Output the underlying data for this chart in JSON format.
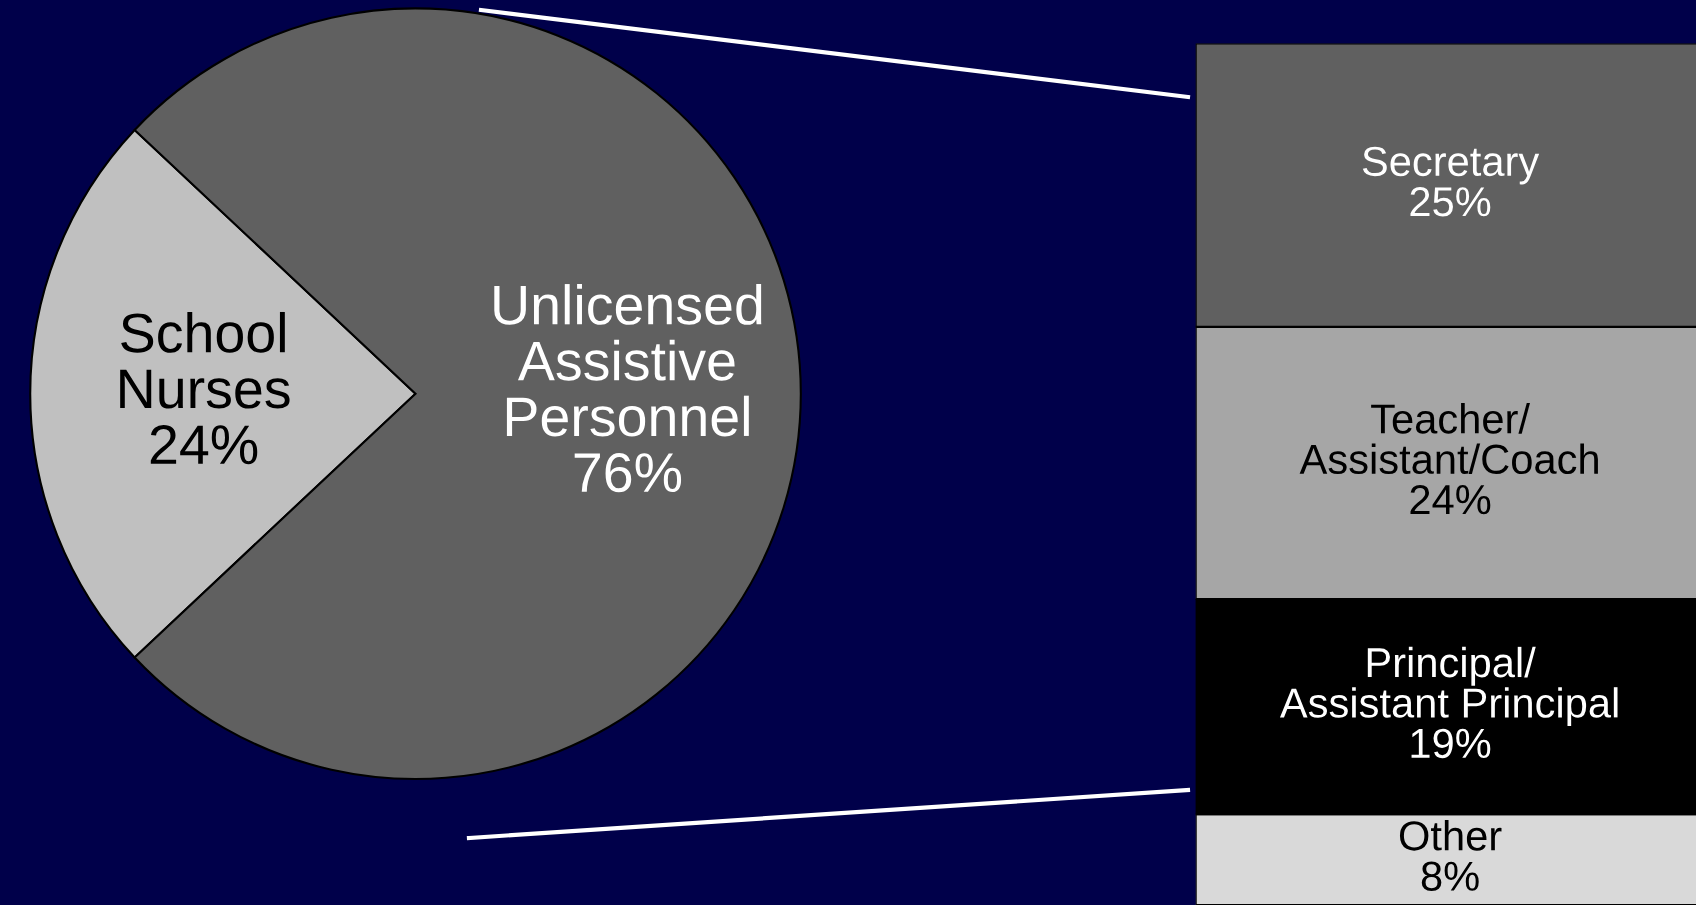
{
  "chart_data": [
    {
      "type": "pie",
      "categories": [
        "School\nNurses",
        "Unlicensed\nAssistive\nPersonnel"
      ],
      "values": [
        24,
        76
      ],
      "colors": [
        "#c0c0c0",
        "#606060"
      ],
      "value_labels": [
        "24%",
        "76%"
      ]
    },
    {
      "type": "bar",
      "stacked": true,
      "categories": [
        null
      ],
      "series": [
        {
          "name": "Other",
          "color": "#d9d9d9",
          "values": [
            8
          ],
          "value_labels": [
            "8%"
          ]
        },
        {
          "name": "Principal/\nAssistant Principal",
          "color": "#000000",
          "values": [
            19
          ],
          "value_labels": [
            "19%"
          ]
        },
        {
          "name": "Teacher/\nAssistant/Coach",
          "color": "#a6a6a6",
          "values": [
            24
          ],
          "value_labels": [
            "24%"
          ]
        },
        {
          "name": "Secretary",
          "color": "#606060",
          "values": [
            25
          ],
          "value_labels": [
            "25%"
          ]
        }
      ]
    }
  ]
}
